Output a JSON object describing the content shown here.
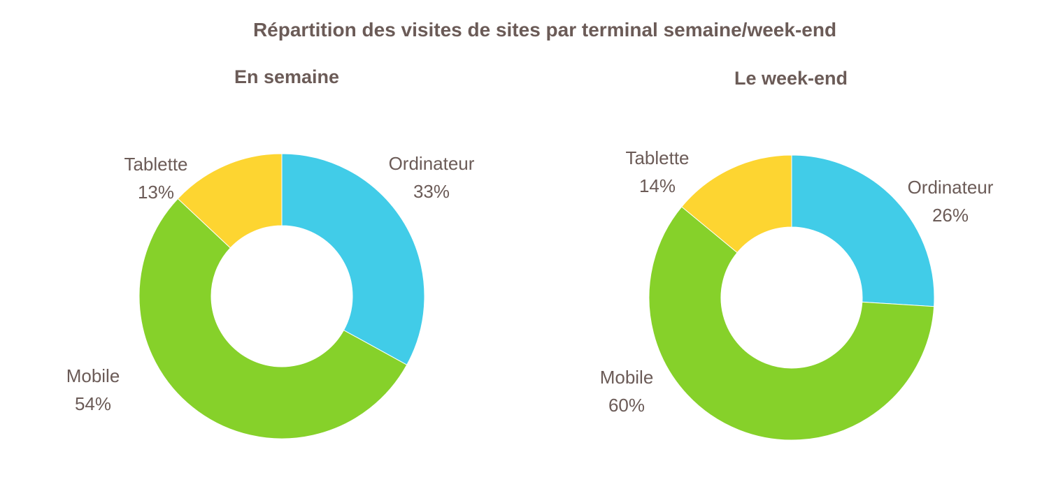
{
  "title": "Répartition des visites de sites par terminal semaine/week-end",
  "chart_data": [
    {
      "type": "pie",
      "title": "En semaine",
      "categories": [
        "Ordinateur",
        "Mobile",
        "Tablette"
      ],
      "values": [
        33,
        54,
        13
      ],
      "value_labels": [
        "33%",
        "54%",
        "13%"
      ],
      "colors": [
        "#41cce8",
        "#86d12a",
        "#fdd531"
      ],
      "donut": true
    },
    {
      "type": "pie",
      "title": "Le week-end",
      "categories": [
        "Ordinateur",
        "Mobile",
        "Tablette"
      ],
      "values": [
        26,
        60,
        14
      ],
      "value_labels": [
        "26%",
        "60%",
        "14%"
      ],
      "colors": [
        "#41cce8",
        "#86d12a",
        "#fdd531"
      ],
      "donut": true
    }
  ]
}
